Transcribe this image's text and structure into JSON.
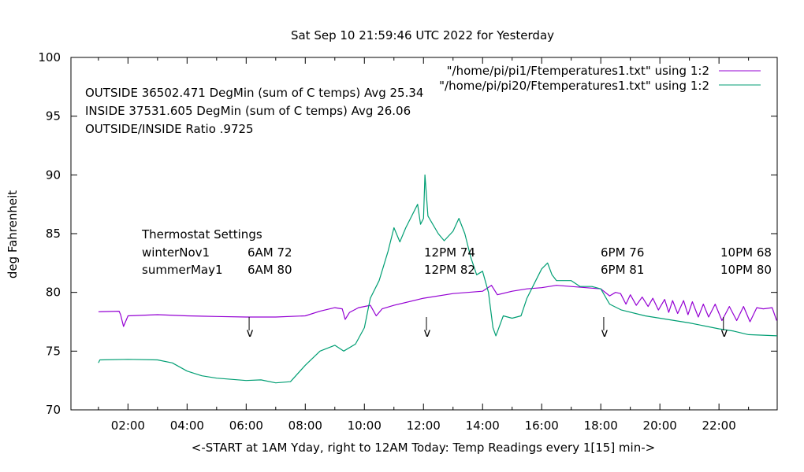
{
  "chart_data": {
    "type": "line",
    "title": "Sat Sep 10 21:59:46 UTC 2022 for Yesterday",
    "xlabel": "<-START at 1AM Yday, right to 12AM Today:  Temp Readings every 1[15] min->",
    "ylabel": "deg Fahrenheit",
    "xlim": [
      0.07,
      23.97
    ],
    "ylim": [
      70,
      100
    ],
    "x_unit": "hours",
    "xticks": [
      {
        "v": 2,
        "label": "02:00"
      },
      {
        "v": 4,
        "label": "04:00"
      },
      {
        "v": 6,
        "label": "06:00"
      },
      {
        "v": 8,
        "label": "08:00"
      },
      {
        "v": 10,
        "label": "10:00"
      },
      {
        "v": 12,
        "label": "12:00"
      },
      {
        "v": 14,
        "label": "14:00"
      },
      {
        "v": 16,
        "label": "16:00"
      },
      {
        "v": 18,
        "label": "18:00"
      },
      {
        "v": 20,
        "label": "20:00"
      },
      {
        "v": 22,
        "label": "22:00"
      }
    ],
    "yticks": [
      70,
      75,
      80,
      85,
      90,
      95,
      100
    ],
    "grid": false,
    "legend_position": "top-right",
    "series": [
      {
        "name": "\"/home/pi/pi1/Ftemperatures1.txt\" using 1:2",
        "color": "#9400d3",
        "points": [
          [
            1.0,
            78.35
          ],
          [
            1.7,
            78.4
          ],
          [
            1.75,
            78.1
          ],
          [
            1.85,
            77.1
          ],
          [
            2.0,
            78.0
          ],
          [
            3.0,
            78.1
          ],
          [
            4.0,
            78.0
          ],
          [
            5.0,
            77.95
          ],
          [
            6.0,
            77.9
          ],
          [
            7.0,
            77.9
          ],
          [
            8.0,
            78.0
          ],
          [
            8.5,
            78.4
          ],
          [
            9.0,
            78.7
          ],
          [
            9.25,
            78.6
          ],
          [
            9.35,
            77.7
          ],
          [
            9.5,
            78.3
          ],
          [
            9.8,
            78.7
          ],
          [
            10.2,
            78.9
          ],
          [
            10.4,
            78.0
          ],
          [
            10.6,
            78.6
          ],
          [
            11.0,
            78.9
          ],
          [
            12.0,
            79.5
          ],
          [
            13.0,
            79.9
          ],
          [
            14.0,
            80.1
          ],
          [
            14.3,
            80.6
          ],
          [
            14.5,
            79.8
          ],
          [
            15.0,
            80.1
          ],
          [
            15.5,
            80.3
          ],
          [
            16.0,
            80.4
          ],
          [
            16.5,
            80.6
          ],
          [
            17.0,
            80.5
          ],
          [
            17.5,
            80.4
          ],
          [
            18.0,
            80.3
          ],
          [
            18.3,
            79.7
          ],
          [
            18.5,
            80.0
          ],
          [
            18.67,
            79.9
          ],
          [
            18.85,
            79.0
          ],
          [
            19.0,
            79.8
          ],
          [
            19.2,
            78.9
          ],
          [
            19.4,
            79.6
          ],
          [
            19.6,
            78.8
          ],
          [
            19.76,
            79.5
          ],
          [
            19.95,
            78.5
          ],
          [
            20.16,
            79.4
          ],
          [
            20.3,
            78.3
          ],
          [
            20.43,
            79.3
          ],
          [
            20.6,
            78.2
          ],
          [
            20.8,
            79.3
          ],
          [
            20.95,
            78.1
          ],
          [
            21.1,
            79.2
          ],
          [
            21.3,
            77.9
          ],
          [
            21.47,
            79.0
          ],
          [
            21.65,
            77.9
          ],
          [
            21.87,
            79.0
          ],
          [
            22.1,
            77.6
          ],
          [
            22.35,
            78.8
          ],
          [
            22.6,
            77.6
          ],
          [
            22.83,
            78.8
          ],
          [
            23.05,
            77.5
          ],
          [
            23.28,
            78.7
          ],
          [
            23.5,
            78.6
          ],
          [
            23.8,
            78.7
          ],
          [
            23.95,
            77.6
          ]
        ]
      },
      {
        "name": "\"/home/pi/pi20/Ftemperatures1.txt\" using 1:2",
        "color": "#009e73",
        "points": [
          [
            1.0,
            74.0
          ],
          [
            1.05,
            74.25
          ],
          [
            2.0,
            74.3
          ],
          [
            3.0,
            74.25
          ],
          [
            3.5,
            74.0
          ],
          [
            4.0,
            73.3
          ],
          [
            4.5,
            72.9
          ],
          [
            5.0,
            72.7
          ],
          [
            6.0,
            72.5
          ],
          [
            6.5,
            72.55
          ],
          [
            7.0,
            72.3
          ],
          [
            7.5,
            72.4
          ],
          [
            8.0,
            73.8
          ],
          [
            8.5,
            75.0
          ],
          [
            9.0,
            75.5
          ],
          [
            9.3,
            75.0
          ],
          [
            9.7,
            75.6
          ],
          [
            10.0,
            77.0
          ],
          [
            10.2,
            79.5
          ],
          [
            10.5,
            81.0
          ],
          [
            10.8,
            83.5
          ],
          [
            11.0,
            85.5
          ],
          [
            11.2,
            84.3
          ],
          [
            11.4,
            85.5
          ],
          [
            11.6,
            86.5
          ],
          [
            11.8,
            87.5
          ],
          [
            11.9,
            85.8
          ],
          [
            12.0,
            86.3
          ],
          [
            12.05,
            90.0
          ],
          [
            12.15,
            86.5
          ],
          [
            12.5,
            85.0
          ],
          [
            12.7,
            84.4
          ],
          [
            13.0,
            85.2
          ],
          [
            13.2,
            86.3
          ],
          [
            13.4,
            85.0
          ],
          [
            13.6,
            83.0
          ],
          [
            13.8,
            81.5
          ],
          [
            14.0,
            81.8
          ],
          [
            14.2,
            80.0
          ],
          [
            14.35,
            77.0
          ],
          [
            14.45,
            76.3
          ],
          [
            14.7,
            78.0
          ],
          [
            15.0,
            77.8
          ],
          [
            15.3,
            78.0
          ],
          [
            15.5,
            79.5
          ],
          [
            15.8,
            81.0
          ],
          [
            16.0,
            82.0
          ],
          [
            16.2,
            82.5
          ],
          [
            16.35,
            81.5
          ],
          [
            16.5,
            81.0
          ],
          [
            17.0,
            81.0
          ],
          [
            17.3,
            80.5
          ],
          [
            17.7,
            80.5
          ],
          [
            18.0,
            80.3
          ],
          [
            18.3,
            79.0
          ],
          [
            18.7,
            78.5
          ],
          [
            19.5,
            78.0
          ],
          [
            20.0,
            77.8
          ],
          [
            21.0,
            77.4
          ],
          [
            22.0,
            76.9
          ],
          [
            22.5,
            76.7
          ],
          [
            23.0,
            76.4
          ],
          [
            23.97,
            76.3
          ]
        ]
      }
    ],
    "annotations": {
      "stats": [
        "OUTSIDE 36502.471 DegMin (sum of C temps) Avg 25.34",
        "INSIDE 37531.605 DegMin (sum of C temps) Avg 26.06",
        "OUTSIDE/INSIDE Ratio .9725"
      ],
      "thermostat_title": "Thermostat Settings",
      "winter_label": "winterNov1",
      "summer_label": "summerMay1",
      "winter": [
        "6AM 72",
        "12PM 74",
        "6PM 76",
        "10PM 68"
      ],
      "summer": [
        "6AM 80",
        "12PM 82",
        "6PM 81",
        "10PM 80"
      ],
      "arrow_mark": "v",
      "arrow_hours": [
        6.1,
        12.1,
        18.1,
        22.15
      ]
    }
  }
}
